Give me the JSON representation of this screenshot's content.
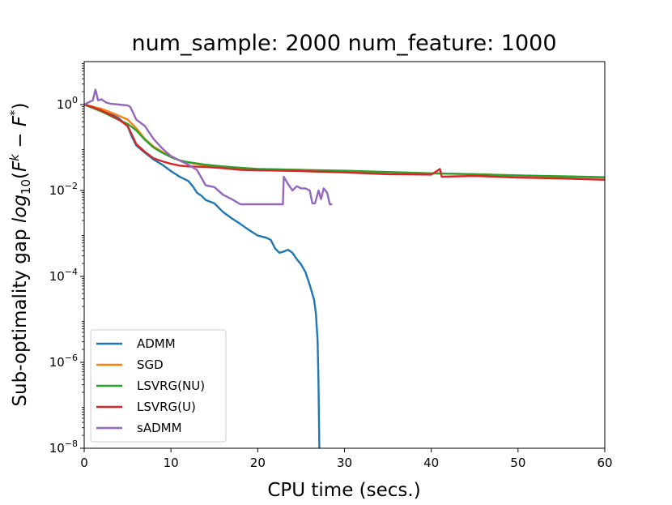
{
  "chart_data": {
    "type": "line",
    "title": "num_sample: 2000 num_feature: 1000",
    "xlabel": "CPU time (secs.)",
    "ylabel_prefix": "Sub-optimality gap ",
    "ylabel_math": {
      "base": "log",
      "base_sub": "10",
      "open": "(",
      "F1": "F",
      "sup1": "k",
      "minus": " − ",
      "F2": "F",
      "sup2": "*",
      "close": ")"
    },
    "xlim": [
      0,
      60
    ],
    "ylim_log10": [
      -8,
      1
    ],
    "y_scale": "log",
    "x_ticks": [
      0,
      10,
      20,
      30,
      40,
      50,
      60
    ],
    "x_tick_labels": [
      "0",
      "10",
      "20",
      "30",
      "40",
      "50",
      "60"
    ],
    "y_ticks_log10": [
      0,
      -2,
      -4,
      -6,
      -8
    ],
    "y_tick_labels": [
      {
        "base": "10",
        "exp": "0"
      },
      {
        "base": "10",
        "exp": "−2"
      },
      {
        "base": "10",
        "exp": "−4"
      },
      {
        "base": "10",
        "exp": "−6"
      },
      {
        "base": "10",
        "exp": "−8"
      }
    ],
    "legend_position": "lower-left",
    "series": [
      {
        "name": "ADMM",
        "color": "#1f77b4",
        "x": [
          0,
          1,
          2,
          3,
          4,
          5,
          5.5,
          6,
          7,
          8,
          9,
          10,
          11,
          12,
          12.5,
          13,
          13.5,
          14,
          15,
          16,
          17,
          18,
          19,
          20,
          21,
          21.5,
          22,
          22.5,
          23,
          23.5,
          24,
          24.5,
          25,
          25.5,
          26,
          26.5,
          26.7,
          26.9,
          27,
          27.1
        ],
        "y_log10": [
          0,
          -0.05,
          -0.12,
          -0.2,
          -0.32,
          -0.5,
          -0.75,
          -0.95,
          -1.12,
          -1.28,
          -1.4,
          -1.55,
          -1.68,
          -1.78,
          -1.9,
          -2.05,
          -2.12,
          -2.22,
          -2.3,
          -2.5,
          -2.65,
          -2.78,
          -2.92,
          -3.05,
          -3.1,
          -3.15,
          -3.35,
          -3.45,
          -3.42,
          -3.38,
          -3.45,
          -3.6,
          -3.72,
          -3.9,
          -4.2,
          -4.55,
          -4.85,
          -5.5,
          -6.5,
          -8
        ]
      },
      {
        "name": "SGD",
        "color": "#ff7f0e",
        "x": [
          0,
          1,
          2,
          3,
          4,
          5,
          6,
          7,
          8,
          9,
          10,
          11,
          12,
          14,
          16,
          18,
          20,
          25,
          30,
          35,
          40,
          45,
          50,
          55,
          60
        ],
        "y_log10": [
          0,
          -0.05,
          -0.1,
          -0.18,
          -0.26,
          -0.35,
          -0.55,
          -0.8,
          -0.98,
          -1.1,
          -1.22,
          -1.3,
          -1.35,
          -1.42,
          -1.45,
          -1.48,
          -1.5,
          -1.52,
          -1.55,
          -1.58,
          -1.6,
          -1.62,
          -1.65,
          -1.68,
          -1.7
        ]
      },
      {
        "name": "LSVRG(NU)",
        "color": "#2ca02c",
        "x": [
          0,
          1,
          2,
          3,
          4,
          5,
          6,
          7,
          8,
          9,
          10,
          11,
          12,
          14,
          16,
          18,
          20,
          25,
          30,
          35,
          40,
          45,
          50,
          55,
          60
        ],
        "y_log10": [
          0,
          -0.08,
          -0.16,
          -0.26,
          -0.36,
          -0.45,
          -0.6,
          -0.82,
          -1.0,
          -1.12,
          -1.22,
          -1.3,
          -1.34,
          -1.4,
          -1.44,
          -1.47,
          -1.5,
          -1.52,
          -1.54,
          -1.57,
          -1.6,
          -1.62,
          -1.65,
          -1.67,
          -1.69
        ]
      },
      {
        "name": "LSVRG(U)",
        "color": "#d62728",
        "x": [
          0,
          1,
          2,
          3,
          4,
          5,
          5.5,
          6,
          7,
          8,
          9,
          10,
          11,
          12,
          14,
          16,
          18,
          20,
          25,
          30,
          35,
          40,
          41,
          41.2,
          45,
          50,
          55,
          60
        ],
        "y_log10": [
          0,
          -0.06,
          -0.14,
          -0.24,
          -0.35,
          -0.5,
          -0.7,
          -0.92,
          -1.1,
          -1.25,
          -1.32,
          -1.38,
          -1.42,
          -1.44,
          -1.45,
          -1.48,
          -1.52,
          -1.53,
          -1.55,
          -1.58,
          -1.62,
          -1.63,
          -1.5,
          -1.68,
          -1.66,
          -1.7,
          -1.72,
          -1.75
        ]
      },
      {
        "name": "sADMM",
        "color": "#9467bd",
        "x": [
          0,
          0.5,
          1,
          1.3,
          1.6,
          2,
          2.5,
          3,
          4,
          5,
          5.3,
          6,
          7,
          8,
          9,
          10,
          11,
          12,
          13,
          14,
          15,
          16,
          17,
          18,
          20,
          22,
          22.9,
          23,
          23.5,
          24,
          24.5,
          25,
          25.5,
          26,
          26.3,
          26.6,
          27,
          27.3,
          27.6,
          28,
          28.3,
          28.5
        ],
        "y_log10": [
          0,
          0.05,
          0.1,
          0.35,
          0.1,
          0.12,
          0.05,
          0.02,
          0.0,
          -0.02,
          -0.05,
          -0.35,
          -0.5,
          -0.8,
          -1.02,
          -1.2,
          -1.3,
          -1.4,
          -1.52,
          -1.88,
          -1.92,
          -2.1,
          -2.2,
          -2.32,
          -2.32,
          -2.32,
          -2.32,
          -1.68,
          -1.85,
          -2.0,
          -1.9,
          -1.95,
          -1.95,
          -2.0,
          -2.3,
          -2.3,
          -2.0,
          -2.2,
          -1.95,
          -2.05,
          -2.32,
          -2.32
        ]
      }
    ]
  }
}
